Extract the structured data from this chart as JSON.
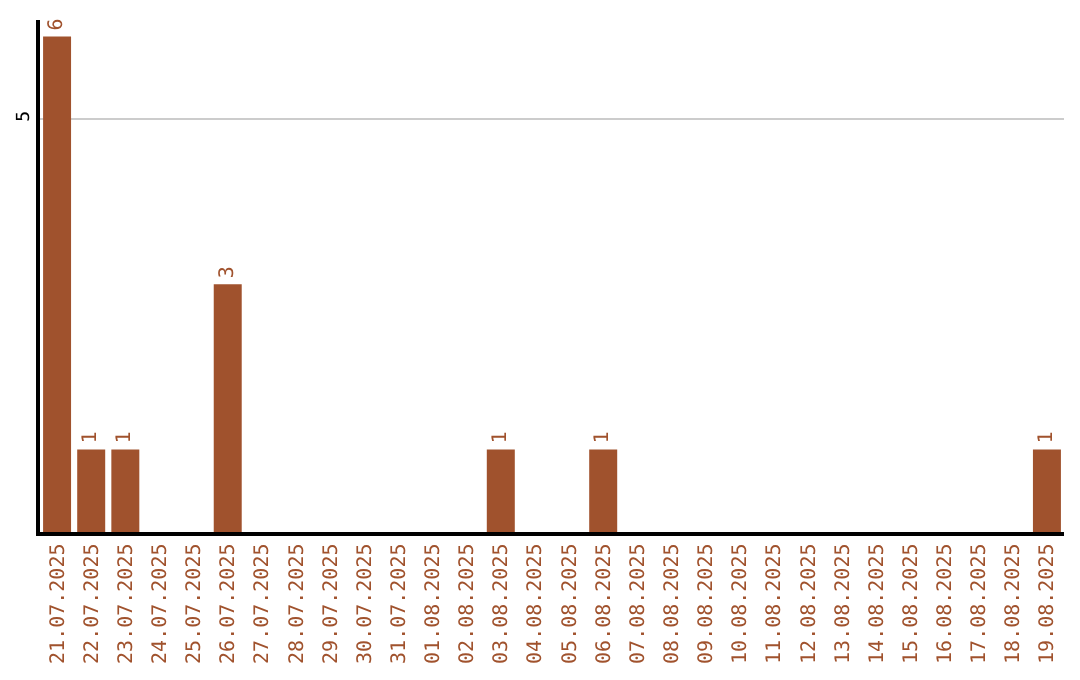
{
  "chart_data": {
    "type": "bar",
    "categories": [
      "21.07.2025",
      "22.07.2025",
      "23.07.2025",
      "24.07.2025",
      "25.07.2025",
      "26.07.2025",
      "27.07.2025",
      "28.07.2025",
      "29.07.2025",
      "30.07.2025",
      "31.07.2025",
      "01.08.2025",
      "02.08.2025",
      "03.08.2025",
      "04.08.2025",
      "05.08.2025",
      "06.08.2025",
      "07.08.2025",
      "08.08.2025",
      "09.08.2025",
      "10.08.2025",
      "11.08.2025",
      "12.08.2025",
      "13.08.2025",
      "14.08.2025",
      "15.08.2025",
      "16.08.2025",
      "17.08.2025",
      "18.08.2025",
      "19.08.2025"
    ],
    "values": [
      6,
      1,
      1,
      0,
      0,
      3,
      0,
      0,
      0,
      0,
      0,
      0,
      0,
      1,
      0,
      0,
      1,
      0,
      0,
      0,
      0,
      0,
      0,
      0,
      0,
      0,
      0,
      0,
      0,
      1
    ],
    "value_labels": [
      "6",
      "1",
      "1",
      null,
      null,
      "3",
      null,
      null,
      null,
      null,
      null,
      null,
      null,
      "1",
      null,
      null,
      "1",
      null,
      null,
      null,
      null,
      null,
      null,
      null,
      null,
      null,
      null,
      null,
      null,
      "1"
    ],
    "color": "#a0522d",
    "ylim": [
      0,
      6.2
    ],
    "yticks": [
      5
    ],
    "grid": "y"
  }
}
